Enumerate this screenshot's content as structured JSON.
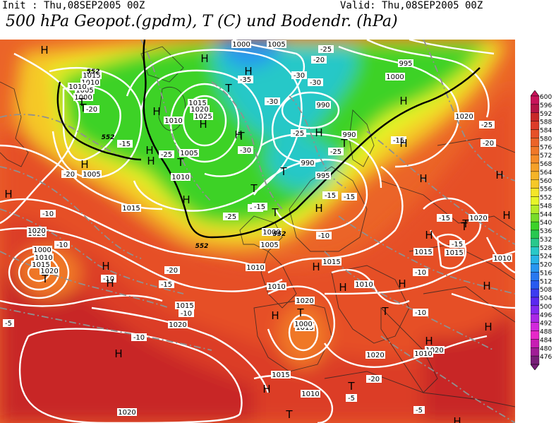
{
  "header": {
    "init": "Init : Thu,08SEP2005 00Z",
    "valid": "Valid: Thu,08SEP2005 00Z",
    "title": "500 hPa Geopot.(gpdm), T (C) und Bodendr. (hPa)"
  },
  "legend": {
    "ticks": [
      "600",
      "596",
      "592",
      "588",
      "584",
      "580",
      "576",
      "572",
      "568",
      "564",
      "560",
      "556",
      "552",
      "548",
      "544",
      "540",
      "536",
      "532",
      "528",
      "524",
      "520",
      "516",
      "512",
      "508",
      "504",
      "500",
      "496",
      "492",
      "488",
      "484",
      "480",
      "476"
    ],
    "colors": [
      "#c8145a",
      "#b41446",
      "#c82828",
      "#dc3c28",
      "#e65028",
      "#eb6428",
      "#f07828",
      "#f58c28",
      "#f5a028",
      "#f5b428",
      "#f5c828",
      "#f5e628",
      "#e6f528",
      "#b4eb28",
      "#78dc28",
      "#3cd228",
      "#28c850",
      "#28c88c",
      "#28c8c8",
      "#28b4e6",
      "#2896f0",
      "#2878f0",
      "#285af0",
      "#3c3cf0",
      "#5a28f0",
      "#8228f0",
      "#aa28e6",
      "#d228dc",
      "#e628c8",
      "#c81eb4",
      "#a01e96",
      "#781e78"
    ]
  },
  "map": {
    "pressure_labels": [
      "1000",
      "1005",
      "995",
      "1000",
      "1015",
      "1010",
      "1005",
      "1000",
      "1015",
      "1020",
      "1025",
      "1010",
      "990",
      "990",
      "995",
      "990",
      "1005",
      "1010",
      "1015",
      "1020",
      "1000",
      "1010",
      "1015",
      "1020",
      "1005",
      "1000",
      "1015",
      "1010",
      "1005",
      "1010",
      "1015",
      "1020",
      "1020",
      "1015",
      "1020",
      "1010",
      "1015",
      "1010",
      "1020",
      "1015",
      "1020",
      "1010",
      "1015",
      "1010",
      "1020",
      "1020",
      "1010",
      "1020",
      "1000"
    ],
    "temperature_labels": [
      "-25",
      "-20",
      "-35",
      "-30",
      "-30",
      "-30",
      "-25",
      "-25",
      "-30",
      "-20",
      "-15",
      "-25",
      "-20",
      "-15",
      "-25",
      "-20",
      "-15",
      "-15",
      "-10",
      "-10",
      "-20",
      "-15",
      "-10",
      "-20",
      "-15",
      "-10",
      "-15",
      "-10",
      "-5",
      "-10",
      "-10",
      "-10",
      "-5",
      "-5",
      "-20",
      "-25",
      "-15"
    ],
    "geopotential_labels": [
      "552",
      "552",
      "552",
      "552"
    ],
    "high_markers": [
      "H",
      "H",
      "H",
      "H",
      "H",
      "H",
      "H",
      "H",
      "H",
      "H",
      "H",
      "H",
      "H",
      "H",
      "H",
      "H",
      "H",
      "H",
      "H",
      "H",
      "H",
      "H",
      "H",
      "H",
      "H",
      "H",
      "H",
      "H",
      "H",
      "H",
      "H"
    ],
    "low_markers": [
      "T",
      "T",
      "T",
      "T",
      "T",
      "T",
      "T",
      "T",
      "T",
      "T",
      "T",
      "T",
      "T",
      "T",
      "T",
      "T"
    ]
  }
}
